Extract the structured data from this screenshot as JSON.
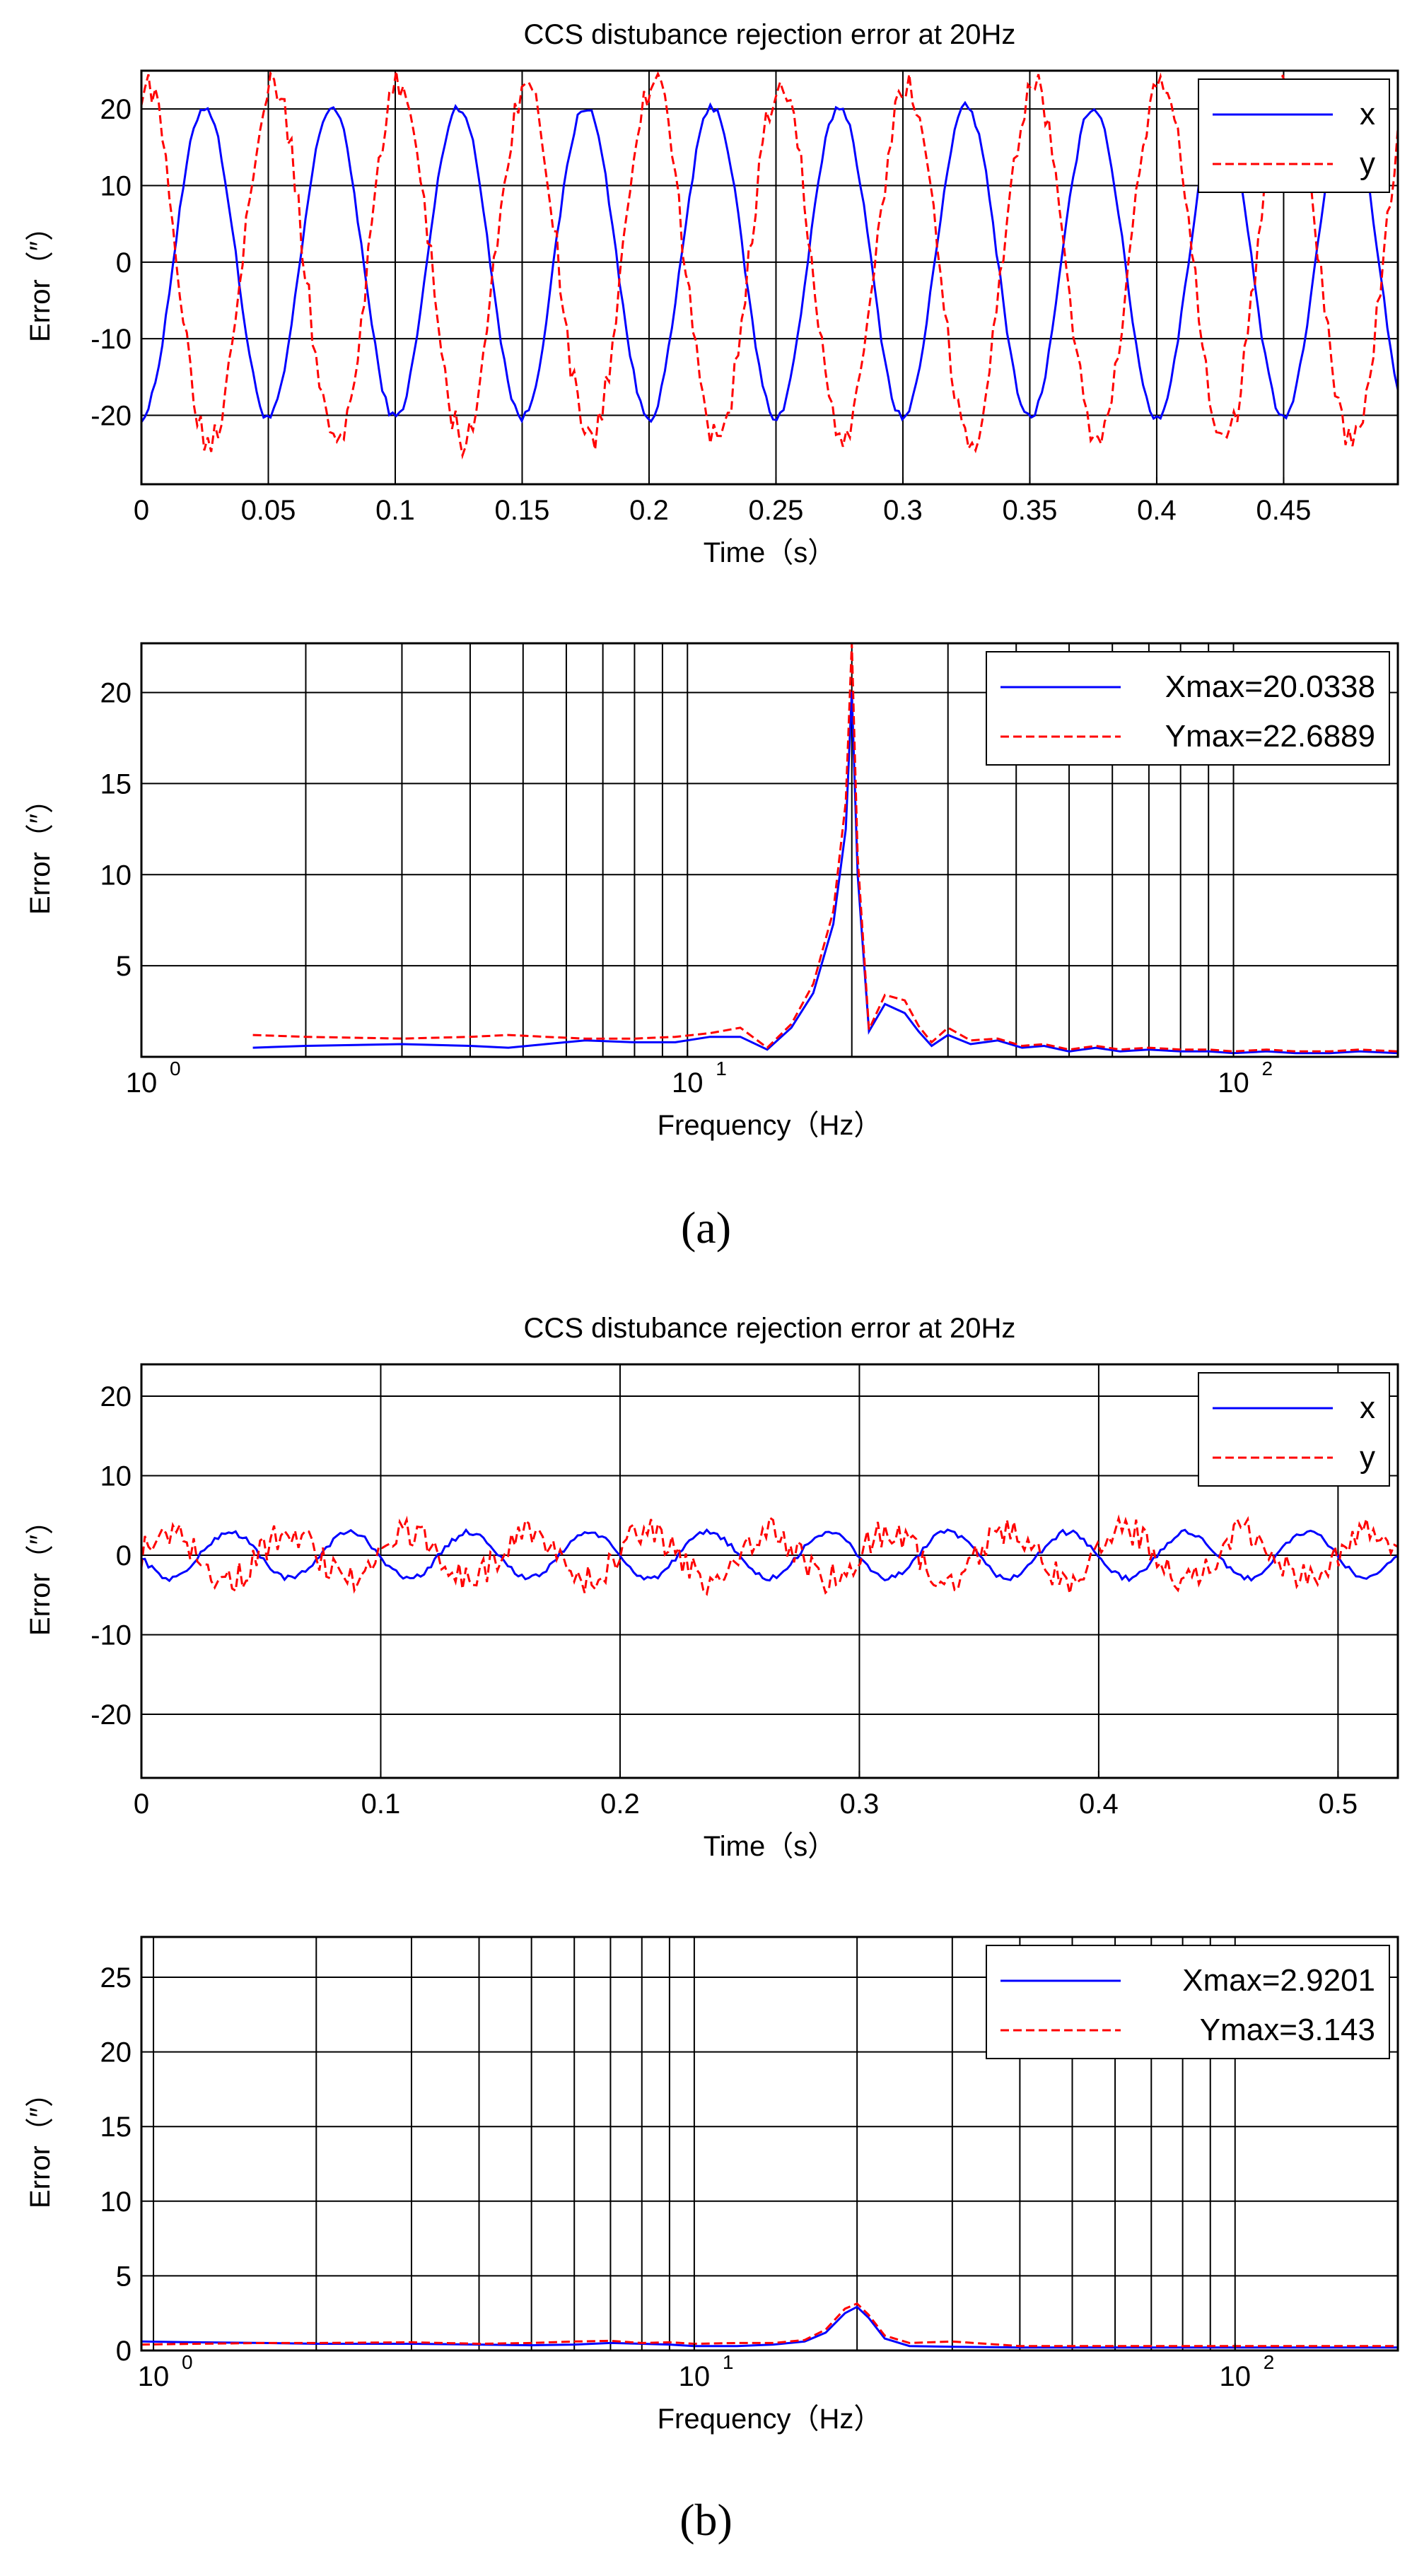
{
  "captions": {
    "a": "(a)",
    "b": "(b)"
  },
  "chart_data": [
    {
      "id": "a_time",
      "type": "line",
      "title": "CCS distubance rejection error at 20Hz",
      "xlabel": "Time（s）",
      "ylabel": "Error（″）",
      "xlim": [
        0,
        0.495
      ],
      "ylim": [
        -29,
        25
      ],
      "xscale": "linear",
      "xticks": [
        0,
        0.05,
        0.1,
        0.15,
        0.2,
        0.25,
        0.3,
        0.35,
        0.4,
        0.45
      ],
      "xticklabels": [
        "0",
        "0.05",
        "0.1",
        "0.15",
        "0.2",
        "0.25",
        "0.3",
        "0.35",
        "0.4",
        "0.45"
      ],
      "yticks": [
        -20,
        -10,
        0,
        10,
        20
      ],
      "yticklabels": [
        "-20",
        "-10",
        "0",
        "10",
        "20"
      ],
      "grid": true,
      "legend_position": "top-right",
      "legend": [
        "x",
        "y"
      ],
      "series": [
        {
          "name": "x",
          "color": "#0000ff",
          "style": "solid",
          "signal": {
            "kind": "sine",
            "freq": 20,
            "amp": 20.3,
            "phase": -1.571,
            "noise": 0.6
          }
        },
        {
          "name": "y",
          "color": "#ff0000",
          "style": "dashed",
          "signal": {
            "kind": "sine",
            "freq": 20,
            "amp": 23.2,
            "phase": 1.35,
            "noise": 2.2
          }
        }
      ]
    },
    {
      "id": "a_freq",
      "type": "line",
      "title": "",
      "xlabel": "Frequency（Hz）",
      "ylabel": "Error（″）",
      "xlim": [
        1,
        200
      ],
      "ylim": [
        0,
        22.7
      ],
      "xscale": "log",
      "xticks": [
        1,
        10,
        100
      ],
      "xticklabels": [
        "10",
        "10",
        "10"
      ],
      "xtick_exponents": [
        "0",
        "1",
        "2"
      ],
      "yticks": [
        5,
        10,
        15,
        20
      ],
      "yticklabels": [
        "5",
        "10",
        "15",
        "20"
      ],
      "grid": true,
      "legend_position": "top-right",
      "legend": [
        "Xmax=20.0338",
        "Ymax=22.6889"
      ],
      "series": [
        {
          "name": "Xmax=20.0338",
          "color": "#0000ff",
          "style": "solid",
          "x": [
            1.6,
            2,
            3,
            4,
            4.7,
            5.5,
            6.5,
            8,
            9.5,
            11,
            12.5,
            14,
            15.5,
            17,
            18.5,
            19.5,
            20,
            20.5,
            21.5,
            23,
            25,
            26.5,
            28,
            30,
            33,
            37,
            41,
            45,
            50,
            56,
            62,
            70,
            80,
            90,
            100,
            115,
            130,
            150,
            170,
            200
          ],
          "y": [
            0.5,
            0.6,
            0.7,
            0.6,
            0.5,
            0.7,
            0.9,
            0.8,
            0.8,
            1.1,
            1.1,
            0.4,
            1.6,
            3.5,
            7.3,
            12.5,
            20.03,
            10.0,
            1.4,
            2.9,
            2.4,
            1.4,
            0.6,
            1.2,
            0.7,
            0.9,
            0.5,
            0.6,
            0.3,
            0.5,
            0.3,
            0.4,
            0.3,
            0.3,
            0.2,
            0.3,
            0.2,
            0.2,
            0.3,
            0.2
          ]
        },
        {
          "name": "Ymax=22.6889",
          "color": "#ff0000",
          "style": "dashed",
          "x": [
            1.6,
            2,
            3,
            4,
            4.7,
            5.5,
            6.5,
            8,
            9.5,
            11,
            12.5,
            14,
            15.5,
            17,
            18.5,
            19.5,
            20,
            20.5,
            21.5,
            23,
            25,
            26.5,
            28,
            30,
            33,
            37,
            41,
            45,
            50,
            56,
            62,
            70,
            80,
            90,
            100,
            115,
            130,
            150,
            170,
            200
          ],
          "y": [
            1.2,
            1.1,
            1.0,
            1.1,
            1.2,
            1.1,
            1.0,
            1.0,
            1.1,
            1.3,
            1.6,
            0.5,
            1.8,
            4.0,
            8.0,
            14.0,
            22.69,
            11.0,
            1.5,
            3.4,
            3.1,
            1.7,
            0.8,
            1.6,
            0.9,
            1.0,
            0.6,
            0.7,
            0.4,
            0.6,
            0.4,
            0.5,
            0.4,
            0.4,
            0.3,
            0.4,
            0.3,
            0.3,
            0.4,
            0.3
          ]
        }
      ]
    },
    {
      "id": "b_time",
      "type": "line",
      "title": "CCS distubance rejection error at 20Hz",
      "xlabel": "Time（s）",
      "ylabel": "Error（″）",
      "xlim": [
        0,
        0.525
      ],
      "ylim": [
        -28,
        24
      ],
      "xscale": "linear",
      "xticks": [
        0,
        0.1,
        0.2,
        0.3,
        0.4,
        0.5
      ],
      "xticklabels": [
        "0",
        "0.1",
        "0.2",
        "0.3",
        "0.4",
        "0.5"
      ],
      "yticks": [
        -20,
        -10,
        0,
        10,
        20
      ],
      "yticklabels": [
        "-20",
        "-10",
        "0",
        "10",
        "20"
      ],
      "grid": true,
      "legend_position": "top-right",
      "legend": [
        "x",
        "y"
      ],
      "series": [
        {
          "name": "x",
          "color": "#0000ff",
          "style": "solid",
          "signal": {
            "kind": "sine",
            "freq": 20,
            "amp": 2.9,
            "phase": 3.2,
            "noise": 0.35
          }
        },
        {
          "name": "y",
          "color": "#ff0000",
          "style": "dashed",
          "signal": {
            "kind": "sine",
            "freq": 20,
            "amp": 3.0,
            "phase": 0.1,
            "noise": 1.9
          }
        }
      ]
    },
    {
      "id": "b_freq",
      "type": "line",
      "title": "",
      "xlabel": "Frequency（Hz）",
      "ylabel": "Error（″）",
      "xlim": [
        0.95,
        200
      ],
      "ylim": [
        0,
        27.7
      ],
      "xscale": "log",
      "xticks": [
        1,
        10,
        100
      ],
      "xticklabels": [
        "10",
        "10",
        "10"
      ],
      "xtick_exponents": [
        "0",
        "1",
        "2"
      ],
      "yticks": [
        0,
        5,
        10,
        15,
        20,
        25
      ],
      "yticklabels": [
        "0",
        "5",
        "10",
        "15",
        "20",
        "25"
      ],
      "grid": true,
      "legend_position": "top-right",
      "legend": [
        "Xmax=2.9201",
        "Ymax=3.143"
      ],
      "series": [
        {
          "name": "Xmax=2.9201",
          "color": "#0000ff",
          "style": "solid",
          "x": [
            0.95,
            1.2,
            1.6,
            2,
            3,
            4,
            5,
            6,
            7,
            8,
            9,
            10,
            12,
            14,
            16,
            17.5,
            19,
            20,
            21,
            22.5,
            25,
            30,
            40,
            60,
            100,
            150,
            200
          ],
          "y": [
            0.6,
            0.55,
            0.5,
            0.45,
            0.45,
            0.4,
            0.35,
            0.4,
            0.5,
            0.45,
            0.4,
            0.3,
            0.3,
            0.4,
            0.6,
            1.2,
            2.5,
            2.92,
            2.2,
            0.8,
            0.3,
            0.25,
            0.2,
            0.2,
            0.2,
            0.2,
            0.2
          ]
        },
        {
          "name": "Ymax=3.143",
          "color": "#ff0000",
          "style": "dashed",
          "x": [
            0.95,
            1.2,
            1.6,
            2,
            3,
            4,
            5,
            6,
            7,
            8,
            9,
            10,
            12,
            14,
            16,
            17.5,
            19,
            20,
            21,
            22.5,
            25,
            30,
            40,
            60,
            100,
            150,
            200
          ],
          "y": [
            0.4,
            0.45,
            0.5,
            0.5,
            0.55,
            0.45,
            0.5,
            0.6,
            0.65,
            0.5,
            0.55,
            0.45,
            0.5,
            0.5,
            0.7,
            1.4,
            2.8,
            3.143,
            2.4,
            1.0,
            0.5,
            0.6,
            0.3,
            0.3,
            0.3,
            0.3,
            0.3
          ]
        }
      ]
    }
  ]
}
